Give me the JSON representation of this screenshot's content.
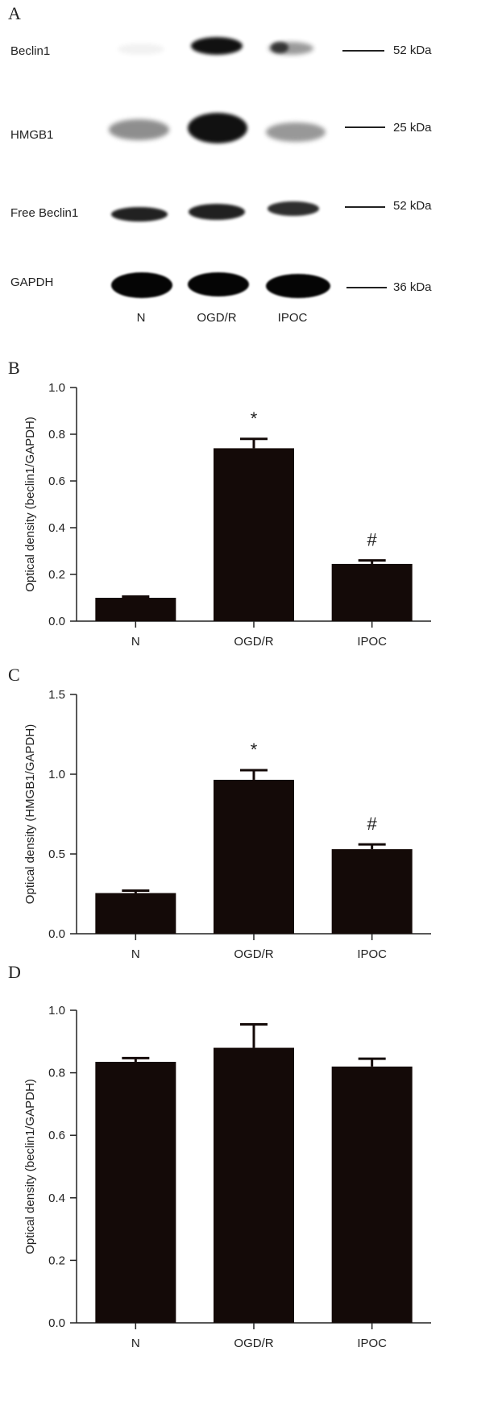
{
  "panels": {
    "a": "A",
    "b": "B",
    "c": "C",
    "d": "D"
  },
  "blot": {
    "rows": [
      {
        "label": "Beclin1",
        "marker": "52 kDa",
        "intensity": [
          0.05,
          0.95,
          0.55
        ]
      },
      {
        "label": "HMGB1",
        "marker": "25 kDa",
        "intensity": [
          0.45,
          0.95,
          0.4
        ]
      },
      {
        "label": "Free Beclin1",
        "marker": "52 kDa",
        "intensity": [
          0.85,
          0.85,
          0.8
        ]
      },
      {
        "label": "GAPDH",
        "marker": "36 kDa",
        "intensity": [
          1.0,
          1.0,
          1.0
        ]
      }
    ],
    "lanes": [
      "N",
      "OGD/R",
      "IPOC"
    ]
  },
  "chart_data": [
    {
      "type": "bar",
      "panel": "B",
      "categories": [
        "N",
        "OGD/R",
        "IPOC"
      ],
      "values": [
        0.1,
        0.74,
        0.245
      ],
      "errors": [
        0.005,
        0.04,
        0.015
      ],
      "annotations": [
        "",
        "*",
        "#"
      ],
      "ylabel": "Optical density (beclin1/GAPDH)",
      "ylim": [
        0,
        1.0
      ],
      "yticks": [
        "0.0",
        "0.2",
        "0.4",
        "0.6",
        "0.8",
        "1.0"
      ],
      "bar_color": "#140a08"
    },
    {
      "type": "bar",
      "panel": "C",
      "categories": [
        "N",
        "OGD/R",
        "IPOC"
      ],
      "values": [
        0.255,
        0.965,
        0.53
      ],
      "errors": [
        0.015,
        0.06,
        0.03
      ],
      "annotations": [
        "",
        "*",
        "#"
      ],
      "ylabel": "Optical density (HMGB1/GAPDH)",
      "ylim": [
        0,
        1.5
      ],
      "yticks": [
        "0.0",
        "0.5",
        "1.0",
        "1.5"
      ],
      "bar_color": "#140a08"
    },
    {
      "type": "bar",
      "panel": "D",
      "categories": [
        "N",
        "OGD/R",
        "IPOC"
      ],
      "values": [
        0.835,
        0.88,
        0.82
      ],
      "errors": [
        0.012,
        0.075,
        0.025
      ],
      "annotations": [
        "",
        "",
        ""
      ],
      "ylabel": "Optical density (beclin1/GAPDH)",
      "ylim": [
        0,
        1.0
      ],
      "yticks": [
        "0.0",
        "0.2",
        "0.4",
        "0.6",
        "0.8",
        "1.0"
      ],
      "bar_color": "#140a08"
    }
  ]
}
